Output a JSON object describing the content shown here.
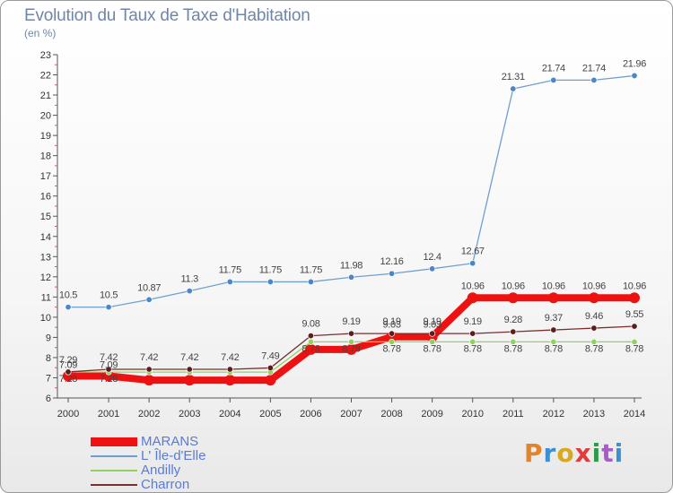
{
  "header": {
    "title": "Evolution du Taux de Taxe d'Habitation",
    "unit": "(en %)"
  },
  "logo": {
    "text": "Proxiti",
    "colors": [
      "#e2832d",
      "#3c8fd2",
      "#d8a81d",
      "#e23a3a",
      "#2f9b47",
      "#a85bc9",
      "#3c8fd2"
    ]
  },
  "chart_data": {
    "type": "line",
    "categories": [
      "2000",
      "2001",
      "2002",
      "2003",
      "2004",
      "2005",
      "2006",
      "2007",
      "2008",
      "2009",
      "2010",
      "2011",
      "2012",
      "2013",
      "2014"
    ],
    "ylim": [
      6,
      23
    ],
    "yticks": [
      6,
      7,
      8,
      9,
      10,
      11,
      12,
      13,
      14,
      15,
      16,
      17,
      18,
      19,
      20,
      21,
      22,
      23
    ],
    "grid": false,
    "legend_position": "bottom-left",
    "series": [
      {
        "name": "MARANS",
        "color": "#ee1111",
        "values": [
          7.09,
          7.09,
          6.88,
          6.88,
          6.88,
          6.88,
          8.4,
          8.4,
          9.03,
          9.03,
          10.96,
          10.96,
          10.96,
          10.96,
          10.96
        ],
        "labels": [
          "7.09",
          "7.09",
          "",
          "",
          "",
          "",
          "",
          "",
          "9.03",
          "9.03",
          "10.96",
          "10.96",
          "10.96",
          "10.96",
          "10.96"
        ]
      },
      {
        "name": "L' Île-d'Elle",
        "color": "#6f9fd1",
        "values": [
          10.5,
          10.5,
          10.87,
          11.3,
          11.75,
          11.75,
          11.75,
          11.98,
          12.16,
          12.4,
          12.67,
          21.31,
          21.74,
          21.74,
          21.96
        ],
        "labels": [
          "10.5",
          "10.5",
          "10.87",
          "11.3",
          "11.75",
          "11.75",
          "11.75",
          "11.98",
          "12.16",
          "12.4",
          "12.67",
          "21.31",
          "21.74",
          "21.74",
          "21.96"
        ]
      },
      {
        "name": "Andilly",
        "color": "#8fd35a",
        "values": [
          7.28,
          7.28,
          7.28,
          7.28,
          7.28,
          7.28,
          8.78,
          8.78,
          8.78,
          8.78,
          8.78,
          8.78,
          8.78,
          8.78,
          8.78
        ],
        "labels": [
          "7.28",
          "7.28",
          "",
          "",
          "",
          "",
          "8.78",
          "8.78",
          "8.78",
          "8.78",
          "8.78",
          "8.78",
          "8.78",
          "8.78",
          "8.78"
        ]
      },
      {
        "name": "Charron",
        "color": "#7a2f2f",
        "values": [
          7.29,
          7.42,
          7.42,
          7.42,
          7.42,
          7.49,
          9.08,
          9.19,
          9.19,
          9.19,
          9.19,
          9.28,
          9.37,
          9.46,
          9.55
        ],
        "labels": [
          "7.29",
          "7.42",
          "7.42",
          "7.42",
          "7.42",
          "7.49",
          "9.08",
          "9.19",
          "9.19",
          "9.19",
          "9.19",
          "9.28",
          "9.37",
          "9.46",
          "9.55"
        ]
      }
    ]
  }
}
